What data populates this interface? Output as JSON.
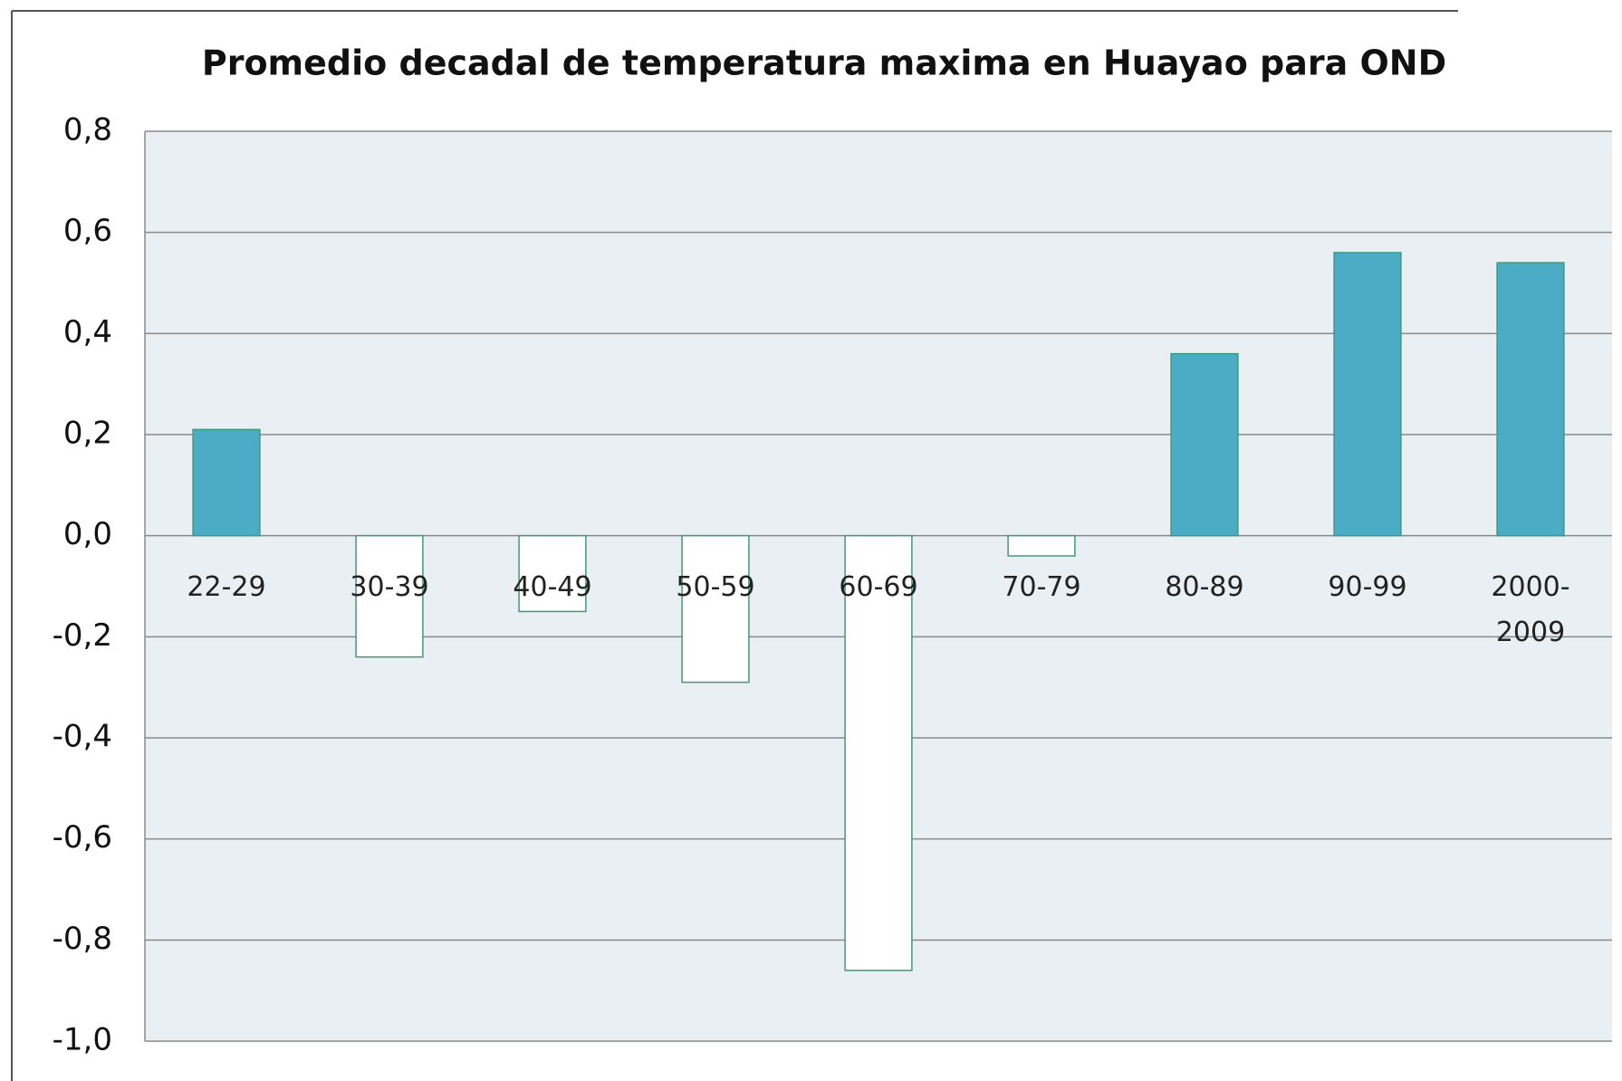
{
  "chart_data": {
    "type": "bar",
    "title": "Promedio decadal de temperatura maxima en Huayao para  OND",
    "categories": [
      "22-29",
      "30-39",
      "40-49",
      "50-59",
      "60-69",
      "70-79",
      "80-89",
      "90-99",
      "2000-2009"
    ],
    "values": [
      0.21,
      -0.24,
      -0.15,
      -0.29,
      -0.86,
      -0.04,
      0.36,
      0.56,
      0.54
    ],
    "color": "#4bacc6",
    "negative_color": "#ffffff",
    "edge_color": "#3f9a7c",
    "ylim": [
      -1.0,
      0.8
    ],
    "yticks": [
      {
        "value": -1.0,
        "label": "-1,0"
      },
      {
        "value": -0.8,
        "label": "-0,8"
      },
      {
        "value": -0.6,
        "label": "-0,6"
      },
      {
        "value": -0.4,
        "label": "-0,4"
      },
      {
        "value": -0.2,
        "label": "-0,2"
      },
      {
        "value": 0.0,
        "label": "0,0"
      },
      {
        "value": 0.2,
        "label": "0,2"
      },
      {
        "value": 0.4,
        "label": "0,4"
      },
      {
        "value": 0.6,
        "label": "0,6"
      },
      {
        "value": 0.8,
        "label": "0,8"
      }
    ],
    "grid": true
  }
}
